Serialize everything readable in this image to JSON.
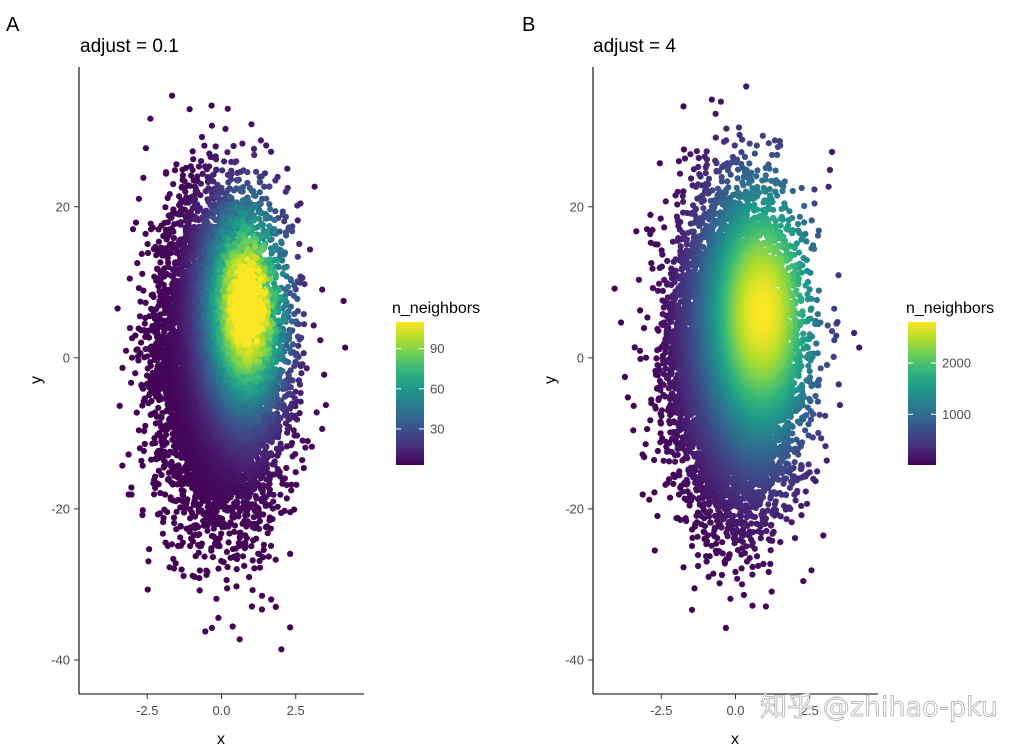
{
  "chart_data": [
    {
      "type": "scatter",
      "panel": "A",
      "title": "adjust = 0.1",
      "xlabel": "x",
      "ylabel": "y",
      "xlim": [
        -4.8,
        4.8
      ],
      "ylim": [
        -44.5,
        38.5
      ],
      "xticks": [
        -2.5,
        0.0,
        2.5
      ],
      "xtick_labels": [
        "-2.5",
        "0.0",
        "2.5"
      ],
      "yticks": [
        -40,
        -20,
        0,
        20
      ],
      "ytick_labels": [
        "-40",
        "-20",
        "0",
        "20"
      ],
      "point_count": 10000,
      "distribution": {
        "x_mean": 0,
        "x_sd": 1,
        "y_mean": 0,
        "y_sd": 10,
        "correlation": 0
      },
      "color_variable": "n_neighbors",
      "colormap": "viridis",
      "density_peak": {
        "x": 0.9,
        "y": 7
      },
      "legend": {
        "title": "n_neighbors",
        "min": 3,
        "max": 110,
        "ticks": [
          30,
          60,
          90
        ],
        "tick_labels": [
          "30",
          "60",
          "90"
        ],
        "placement": "right"
      },
      "grid": false
    },
    {
      "type": "scatter",
      "panel": "B",
      "title": "adjust = 4",
      "xlabel": "x",
      "ylabel": "y",
      "xlim": [
        -4.8,
        4.8
      ],
      "ylim": [
        -44.5,
        38.5
      ],
      "xticks": [
        -2.5,
        0.0,
        2.5
      ],
      "xtick_labels": [
        "-2.5",
        "0.0",
        "2.5"
      ],
      "yticks": [
        -40,
        -20,
        0,
        20
      ],
      "ytick_labels": [
        "-40",
        "-20",
        "0",
        "20"
      ],
      "point_count": 10000,
      "distribution": {
        "x_mean": 0,
        "x_sd": 1,
        "y_mean": 0,
        "y_sd": 10,
        "correlation": 0
      },
      "color_variable": "n_neighbors",
      "colormap": "viridis",
      "density_peak": {
        "x": 0.9,
        "y": 6
      },
      "legend": {
        "title": "n_neighbors",
        "min": 10,
        "max": 2800,
        "ticks": [
          1000,
          2000
        ],
        "tick_labels": [
          "1000",
          "2000"
        ],
        "placement": "right"
      },
      "grid": false
    }
  ],
  "watermark": "知乎 @zhihao-pku",
  "colors": {
    "viridis": [
      "#440154",
      "#482878",
      "#3e4989",
      "#31688e",
      "#26828e",
      "#1f9e89",
      "#35b779",
      "#6ece58",
      "#b5de2b",
      "#fde725"
    ],
    "axis": "#000000",
    "tick_text": "#4d4d4d"
  }
}
